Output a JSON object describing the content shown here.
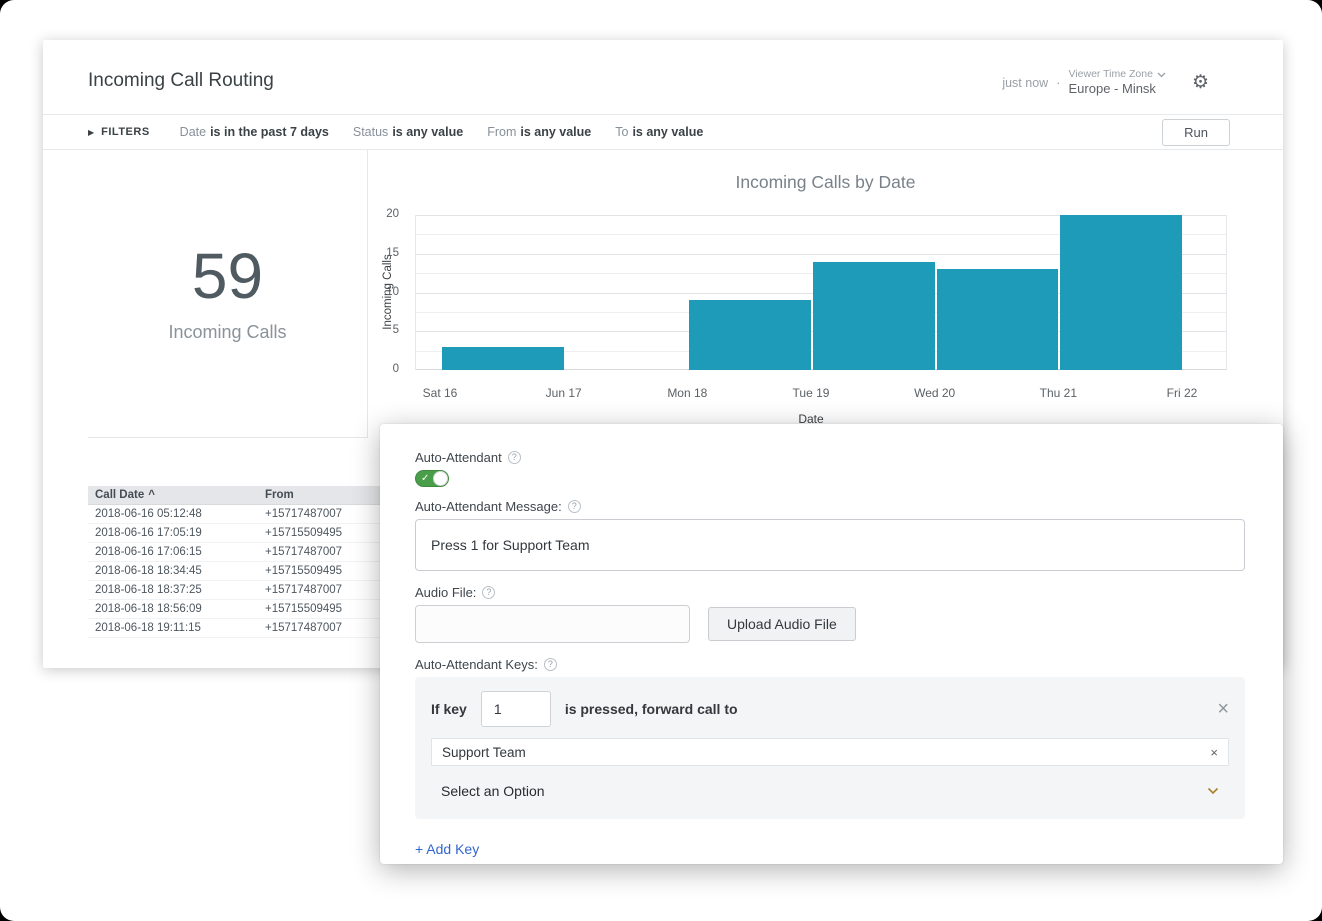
{
  "header": {
    "title": "Incoming Call Routing",
    "updated": "just now",
    "dot": "·",
    "timezone_label": "Viewer Time Zone",
    "timezone_value": "Europe - Minsk"
  },
  "filters": {
    "label": "FILTERS",
    "items": [
      {
        "name": "Date",
        "value": "is in the past 7 days"
      },
      {
        "name": "Status",
        "value": "is any value"
      },
      {
        "name": "From",
        "value": "is any value"
      },
      {
        "name": "To",
        "value": "is any value"
      }
    ],
    "run_label": "Run"
  },
  "kpi": {
    "value": "59",
    "label": "Incoming Calls"
  },
  "chart_data": {
    "type": "bar",
    "title": "Incoming Calls by Date",
    "xlabel": "Date",
    "ylabel": "Incoming Calls",
    "x_ticks": [
      "Sat 16",
      "Jun 17",
      "Mon 18",
      "Tue 19",
      "Wed 20",
      "Thu 21",
      "Fri 22"
    ],
    "values": [
      3,
      0,
      9,
      14,
      13,
      20
    ],
    "bars_span_tick_intervals": true,
    "ylim": [
      0,
      20
    ],
    "ytick_step": 5,
    "grid_minor_step": 2.5,
    "legend": "none"
  },
  "table": {
    "columns": [
      "Call Date",
      "From"
    ],
    "sort": {
      "column": "Call Date",
      "direction": "asc"
    },
    "rows": [
      [
        "2018-06-16 05:12:48",
        "+15717487007"
      ],
      [
        "2018-06-16 17:05:19",
        "+15715509495"
      ],
      [
        "2018-06-16 17:06:15",
        "+15717487007"
      ],
      [
        "2018-06-18 18:34:45",
        "+15715509495"
      ],
      [
        "2018-06-18 18:37:25",
        "+15717487007"
      ],
      [
        "2018-06-18 18:56:09",
        "+15715509495"
      ],
      [
        "2018-06-18 19:11:15",
        "+15717487007"
      ]
    ]
  },
  "panel": {
    "toggle_label": "Auto-Attendant",
    "toggle_on": true,
    "message_label": "Auto-Attendant Message:",
    "message_value": "Press 1 for Support Team",
    "audio_label": "Audio File:",
    "audio_value": "",
    "upload_button": "Upload Audio File",
    "keys_label": "Auto-Attendant Keys:",
    "key_row": {
      "prefix": "If key",
      "key_value": "1",
      "suffix": "is pressed, forward call to",
      "selected_team": "Support Team",
      "option_placeholder": "Select an Option"
    },
    "add_key_label": "+ Add Key"
  },
  "icons": {
    "gear": "⚙",
    "filters_arrow": "▶",
    "help": "?",
    "check": "✓",
    "close": "×",
    "clear": "×",
    "sort_asc": "^",
    "dot": "·"
  },
  "colors": {
    "bar": "#1e9bb9",
    "toggle_green": "#4a9e4a",
    "link_blue": "#3366cc",
    "select_chevron": "#a8822a"
  }
}
